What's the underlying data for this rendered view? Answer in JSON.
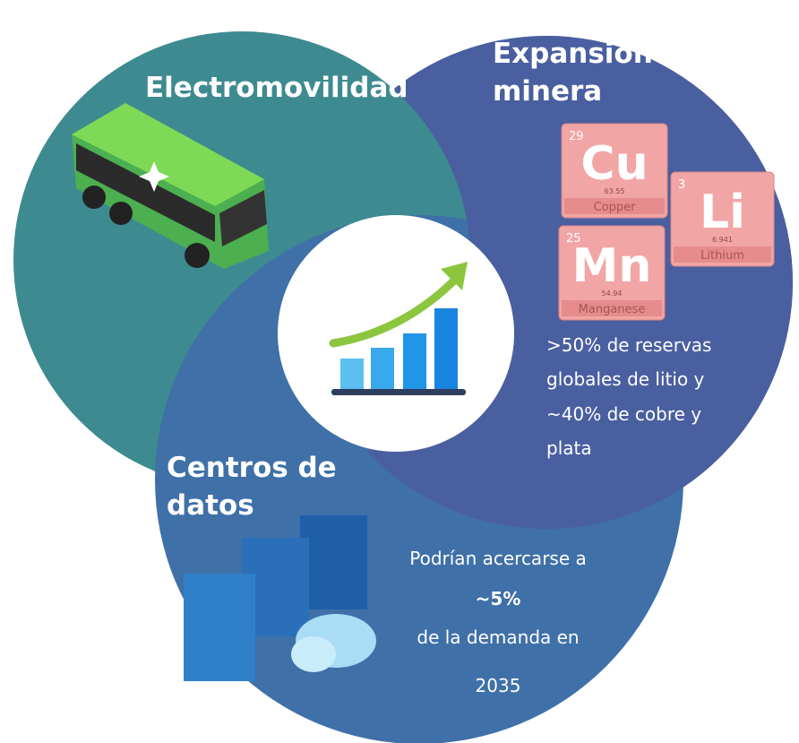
{
  "sections": [
    {
      "heading": [
        "Electromovilidad"
      ]
    },
    {
      "heading": [
        "Expansión",
        "minera"
      ],
      "elements": [
        {
          "number": "29",
          "symbol": "Cu",
          "mass": "63.55",
          "name": "Copper"
        },
        {
          "number": "3",
          "symbol": "Li",
          "mass": "6.941",
          "name": "Lithium"
        },
        {
          "number": "25",
          "symbol": "Mn",
          "mass": "54.94",
          "name": "Manganese"
        }
      ],
      "text": [
        ">50% de reservas",
        "globales de litio y",
        "~40% de cobre y",
        "plata"
      ]
    },
    {
      "heading": [
        "Centros de",
        "datos"
      ],
      "text": [
        "Podrían acercarse a",
        "~5%",
        "de la demanda en",
        "2035"
      ]
    }
  ]
}
